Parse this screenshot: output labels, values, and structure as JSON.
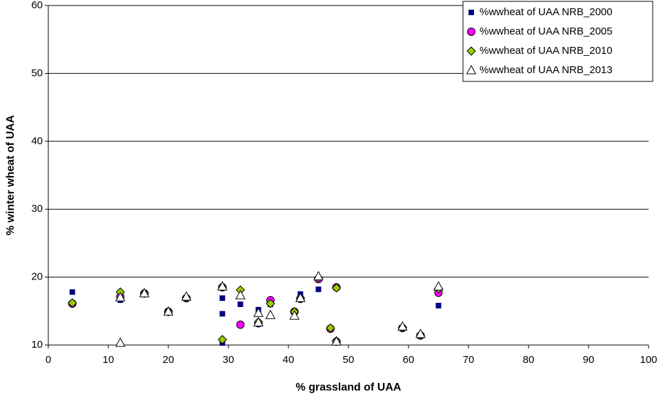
{
  "chart_data": {
    "type": "scatter",
    "x_label": "% grassland of UAA",
    "y_label": "% winter wheat of UAA",
    "xlim": [
      0,
      100
    ],
    "xticks": [
      0,
      10,
      20,
      30,
      40,
      50,
      60,
      70,
      80,
      90,
      100
    ],
    "ylim": [
      10,
      60
    ],
    "yticks": [
      10,
      20,
      30,
      40,
      50,
      60
    ],
    "grid": true,
    "legend": "top-right",
    "series": [
      {
        "name": "%wwheat of UAA NRB_2000",
        "color": "#000080",
        "marker": "square",
        "x": [
          4,
          12,
          20,
          29,
          29,
          29,
          32,
          35,
          37,
          42,
          45,
          65
        ],
        "values": [
          17.8,
          16.6,
          15.0,
          16.9,
          14.6,
          10.3,
          16.0,
          15.2,
          16.0,
          17.5,
          18.2,
          15.8
        ]
      },
      {
        "name": "%wwheat of UAA NRB_2005",
        "color": "#ff00ff",
        "marker": "circle",
        "x": [
          4,
          12,
          16,
          20,
          23,
          29,
          32,
          35,
          37,
          41,
          42,
          45,
          47,
          48,
          48,
          59,
          62,
          65
        ],
        "values": [
          16.1,
          17.1,
          17.6,
          14.9,
          16.9,
          18.5,
          13.0,
          13.2,
          16.6,
          14.9,
          16.8,
          19.7,
          12.4,
          18.5,
          10.5,
          12.5,
          11.4,
          17.7
        ]
      },
      {
        "name": "%wwheat of UAA NRB_2010",
        "color": "#99cc00",
        "marker": "diamond",
        "x": [
          4,
          12,
          16,
          20,
          23,
          29,
          29,
          32,
          35,
          37,
          41,
          42,
          45,
          47,
          48,
          48,
          59,
          62,
          65
        ],
        "values": [
          16.2,
          17.8,
          17.6,
          14.9,
          17.0,
          18.6,
          10.8,
          18.1,
          13.4,
          16.1,
          14.9,
          16.9,
          19.9,
          12.5,
          18.4,
          10.6,
          12.6,
          11.5,
          18.3
        ]
      },
      {
        "name": "%wwheat of UAA NRB_2013",
        "color": "#ffffff",
        "marker": "triangle",
        "x": [
          12,
          12,
          16,
          20,
          23,
          29,
          32,
          35,
          35,
          37,
          41,
          42,
          45,
          48,
          59,
          62,
          65
        ],
        "values": [
          10.3,
          17.0,
          17.6,
          14.9,
          17.1,
          18.6,
          17.3,
          14.7,
          13.3,
          14.4,
          14.3,
          16.9,
          20.1,
          10.5,
          12.7,
          11.6,
          18.6
        ]
      }
    ]
  }
}
